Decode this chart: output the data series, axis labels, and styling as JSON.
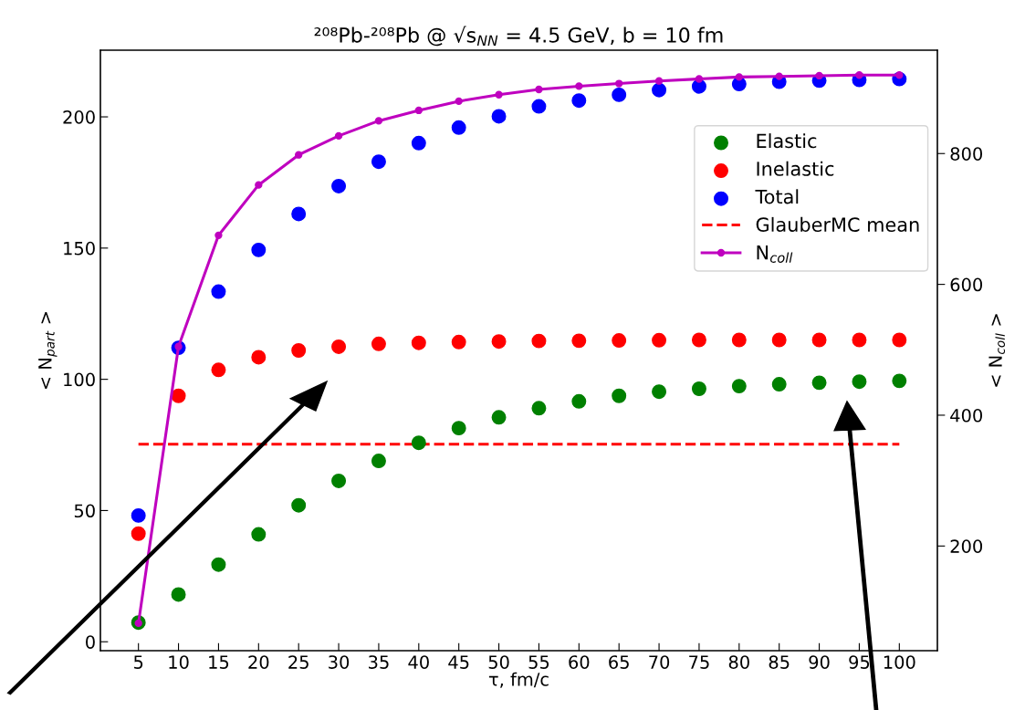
{
  "chart_data": {
    "type": "scatter",
    "title": "²⁰⁸Pb-²⁰⁸Pb @ √s$_{NN}$ = 4.5 GeV, b = 10 fm",
    "xlabel": "τ, fm/c",
    "ylabel": "< N$_{part}$ >",
    "y2label": "< N$_{coll}$ >",
    "x": [
      5,
      10,
      15,
      20,
      25,
      30,
      35,
      40,
      45,
      50,
      55,
      60,
      65,
      70,
      75,
      80,
      85,
      90,
      95,
      100
    ],
    "series": [
      {
        "name": "Elastic",
        "color": "#008000",
        "marker": "circle",
        "values": [
          7.3,
          18,
          29.4,
          40.9,
          52,
          61.3,
          68.9,
          75.8,
          81.4,
          85.5,
          89,
          91.6,
          93.7,
          95.3,
          96.4,
          97.4,
          98.1,
          98.7,
          99.1,
          99.4
        ]
      },
      {
        "name": "Inelastic",
        "color": "#ff0000",
        "marker": "circle",
        "values": [
          41.2,
          93.7,
          103.6,
          108.4,
          111,
          112.4,
          113.5,
          113.9,
          114.2,
          114.4,
          114.6,
          114.7,
          114.8,
          114.9,
          115,
          115,
          115,
          115,
          115,
          115
        ]
      },
      {
        "name": "Total",
        "color": "#0000ff",
        "marker": "circle",
        "values": [
          48.1,
          112,
          133.4,
          149.3,
          163,
          173.6,
          182.9,
          190,
          195.9,
          200.2,
          204,
          206.2,
          208.4,
          210.2,
          211.6,
          212.5,
          213.4,
          213.8,
          214.1,
          214.4
        ]
      },
      {
        "name": "GlauberMC mean",
        "type": "line",
        "color": "#ff0000",
        "line_style": "dashed",
        "marker": "none",
        "values": [
          75.3,
          75.3,
          75.3,
          75.3,
          75.3,
          75.3,
          75.3,
          75.3,
          75.3,
          75.3,
          75.3,
          75.3,
          75.3,
          75.3,
          75.3,
          75.3,
          75.3,
          75.3,
          75.3,
          75.3
        ]
      },
      {
        "name": "N$_{coll}$",
        "type": "line",
        "axis": "y2",
        "color": "#bf00bf",
        "line_style": "solid",
        "marker": "circle",
        "values": [
          82,
          505,
          675,
          752,
          798,
          827,
          850,
          866,
          880,
          890,
          898,
          903,
          907,
          911,
          914,
          917,
          918,
          919,
          920,
          920
        ]
      }
    ],
    "xlim": [
      0.25,
      104.75
    ],
    "xticks": [
      5,
      10,
      15,
      20,
      25,
      30,
      35,
      40,
      45,
      50,
      55,
      60,
      65,
      70,
      75,
      80,
      85,
      90,
      95,
      100
    ],
    "ylim": [
      -3.4,
      225.4
    ],
    "yticks": [
      0,
      50,
      100,
      150,
      200
    ],
    "y2lim": [
      40,
      958
    ],
    "y2ticks": [
      200,
      400,
      600,
      800
    ],
    "grid": false,
    "legend": "right"
  }
}
